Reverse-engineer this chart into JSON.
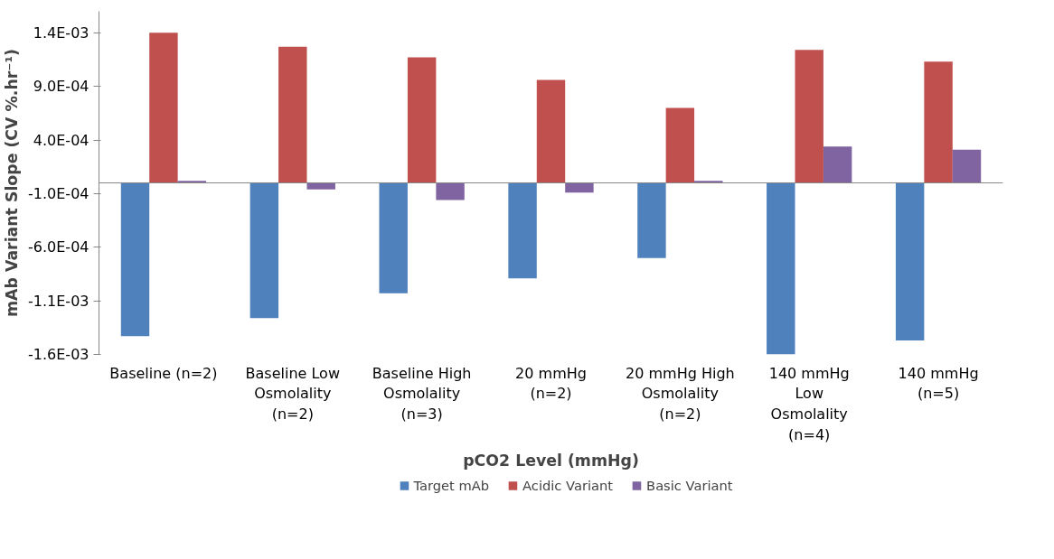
{
  "chart_data": {
    "type": "bar",
    "xlabel": "pCO2 Level (mmHg)",
    "ylabel": "mAb Variant Slope (CV %.hr⁻¹)",
    "categories": [
      "Baseline (n=2)",
      "Baseline Low\nOsmolality\n(n=2)",
      "Baseline High\nOsmolality\n(n=3)",
      "20 mmHg\n(n=2)",
      "20 mmHg High\nOsmolality\n(n=2)",
      "140 mmHg\nLow\nOsmolality\n(n=4)",
      "140 mmHg\n(n=5)"
    ],
    "series": [
      {
        "name": "Target mAb",
        "color": "#4f81bd",
        "values": [
          -0.00143,
          -0.00126,
          -0.00103,
          -0.00089,
          -0.0007,
          -0.0016,
          -0.00147
        ]
      },
      {
        "name": "Acidic Variant",
        "color": "#c0504d",
        "values": [
          0.0014,
          0.00127,
          0.00117,
          0.00096,
          0.0007,
          0.00124,
          0.00113
        ]
      },
      {
        "name": "Basic Variant",
        "color": "#8064a2",
        "values": [
          2e-05,
          -6e-05,
          -0.00016,
          -9e-05,
          2e-05,
          0.00034,
          0.00031
        ]
      }
    ],
    "ylim": [
      -0.0016,
      0.0016
    ],
    "yticks": [
      {
        "value": 0.0014,
        "label": "1.4E-03"
      },
      {
        "value": 0.0009,
        "label": "9.0E-04"
      },
      {
        "value": 0.0004,
        "label": "4.0E-04"
      },
      {
        "value": -0.0001,
        "label": "-1.0E-04"
      },
      {
        "value": -0.0006,
        "label": "-6.0E-04"
      },
      {
        "value": -0.0011,
        "label": "-1.1E-03"
      },
      {
        "value": -0.0016,
        "label": "-1.6E-03"
      }
    ],
    "grid": false,
    "legend": "bottom"
  }
}
